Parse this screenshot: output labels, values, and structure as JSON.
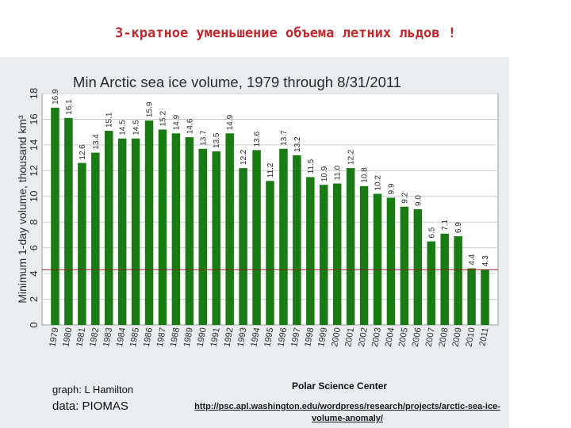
{
  "page": {
    "slide_title": "3-кратное уменьшение объема летних льдов !",
    "graph_credit": "graph:  L Hamilton",
    "data_credit": "data:  PIOMAS",
    "source_label": "Polar Science Center",
    "source_url": "http://psc.apl.washington.edu/wordpress/research/projects/arctic-sea-ice-volume-anomaly/"
  },
  "chart_data": {
    "type": "bar",
    "title": "Min Arctic sea ice volume, 1979 through 8/31/2011",
    "ylabel": "Minimum 1-day volume, thousand km³",
    "xlabel": "",
    "ylim": [
      0,
      18
    ],
    "yticks": [
      0,
      2,
      4,
      6,
      8,
      10,
      12,
      14,
      16,
      18
    ],
    "grid": true,
    "reference_line": 4.3,
    "bar_color": "#1a7a14",
    "reference_line_color": "#8b2020",
    "categories": [
      "1979",
      "1980",
      "1981",
      "1982",
      "1983",
      "1984",
      "1985",
      "1986",
      "1987",
      "1988",
      "1989",
      "1990",
      "1991",
      "1992",
      "1993",
      "1994",
      "1995",
      "1996",
      "1997",
      "1998",
      "1999",
      "2000",
      "2001",
      "2002",
      "2003",
      "2004",
      "2005",
      "2006",
      "2007",
      "2008",
      "2009",
      "2010",
      "2011"
    ],
    "values": [
      16.9,
      16.1,
      12.6,
      13.4,
      15.1,
      14.5,
      14.5,
      15.9,
      15.2,
      14.9,
      14.6,
      13.7,
      13.5,
      14.9,
      12.2,
      13.6,
      11.2,
      13.7,
      13.2,
      11.5,
      10.9,
      11.0,
      12.2,
      10.8,
      10.2,
      9.9,
      9.2,
      9.0,
      6.5,
      7.1,
      6.9,
      4.4,
      4.3
    ],
    "value_labels": [
      "16.9",
      "16.1",
      "12.6",
      "13.4",
      "15.1",
      "14.5",
      "14.5",
      "15.9",
      "15.2",
      "14.9",
      "14.6",
      "13.7",
      "13.5",
      "14.9",
      "12.2",
      "13.6",
      "11.2",
      "13.7",
      "13.2",
      "11.5",
      "10.9",
      "11.0",
      "12.2",
      "10.8",
      "10.2",
      "9.9",
      "9.2",
      "9.0",
      "6.5",
      "7.1",
      "6.9",
      "4.4",
      "4.3"
    ]
  }
}
